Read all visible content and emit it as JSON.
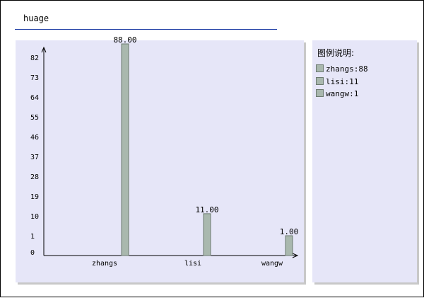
{
  "title": "huage",
  "legend": {
    "title": "图例说明:",
    "items": [
      "zhangs:88",
      "lisi:11",
      "wangw:1"
    ]
  },
  "colors": {
    "bar": "#a9b8ae",
    "bar_stroke": "#6c7a70",
    "panel": "#e6e6f8",
    "rule": "#1f3fa6"
  },
  "chart_data": {
    "type": "bar",
    "categories": [
      "zhangs",
      "lisi",
      "wangw"
    ],
    "values": [
      88,
      11,
      1
    ],
    "value_labels": [
      "88.00",
      "11.00",
      "1.00"
    ],
    "yticks": [
      "0",
      "1",
      "10",
      "19",
      "28",
      "37",
      "46",
      "55",
      "64",
      "73",
      "82"
    ],
    "ylim": [
      0,
      88
    ],
    "grid": false,
    "legend_position": "right"
  }
}
